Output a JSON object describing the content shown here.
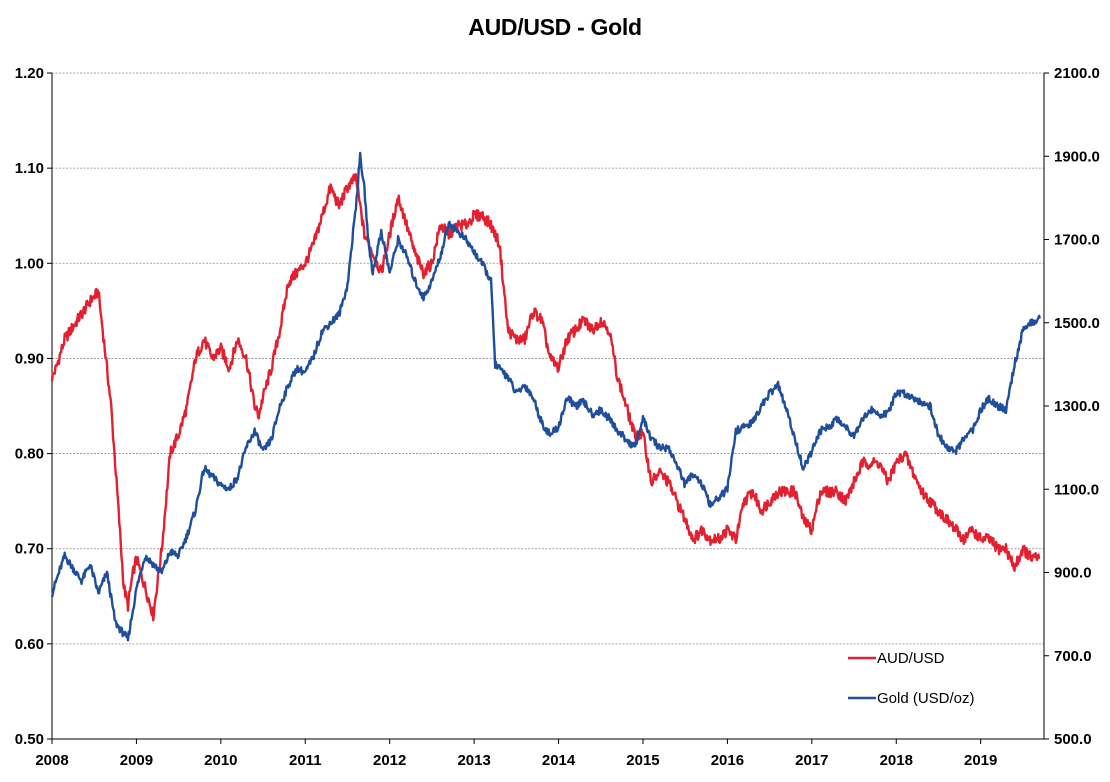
{
  "chart_data": {
    "type": "line",
    "title": "AUD/USD - Gold",
    "x_tick_labels": [
      "2008",
      "2009",
      "2010",
      "2011",
      "2012",
      "2013",
      "2014",
      "2015",
      "2016",
      "2017",
      "2018",
      "2019"
    ],
    "y_left": {
      "ylim": [
        0.5,
        1.2
      ],
      "tick_labels": [
        "0.50",
        "0.60",
        "0.70",
        "0.80",
        "0.90",
        "1.00",
        "1.10",
        "1.20"
      ]
    },
    "y_right": {
      "ylim": [
        500,
        2100
      ],
      "tick_labels": [
        "500.0",
        "700.0",
        "900.0",
        "1100.0",
        "1300.0",
        "1500.0",
        "1700.0",
        "1900.0",
        "2100.0"
      ]
    },
    "grid": "horizontal, dashed",
    "legend_position": "bottom-right",
    "series": [
      {
        "name": "AUD/USD",
        "axis": "left",
        "color": "#e3202f",
        "x": [
          2008.0,
          2008.05,
          2008.15,
          2008.3,
          2008.45,
          2008.55,
          2008.6,
          2008.7,
          2008.78,
          2008.85,
          2008.9,
          2008.95,
          2009.0,
          2009.1,
          2009.2,
          2009.3,
          2009.4,
          2009.5,
          2009.6,
          2009.7,
          2009.8,
          2009.9,
          2010.0,
          2010.1,
          2010.2,
          2010.3,
          2010.4,
          2010.45,
          2010.5,
          2010.6,
          2010.7,
          2010.8,
          2010.9,
          2011.0,
          2011.1,
          2011.2,
          2011.3,
          2011.4,
          2011.5,
          2011.6,
          2011.7,
          2011.8,
          2011.9,
          2012.0,
          2012.1,
          2012.2,
          2012.3,
          2012.4,
          2012.5,
          2012.6,
          2012.7,
          2012.8,
          2012.9,
          2013.0,
          2013.1,
          2013.2,
          2013.3,
          2013.4,
          2013.5,
          2013.6,
          2013.7,
          2013.8,
          2013.9,
          2014.0,
          2014.1,
          2014.2,
          2014.3,
          2014.4,
          2014.5,
          2014.6,
          2014.7,
          2014.8,
          2014.9,
          2015.0,
          2015.1,
          2015.2,
          2015.3,
          2015.4,
          2015.5,
          2015.6,
          2015.7,
          2015.8,
          2015.9,
          2016.0,
          2016.1,
          2016.2,
          2016.3,
          2016.4,
          2016.5,
          2016.6,
          2016.7,
          2016.8,
          2016.9,
          2017.0,
          2017.1,
          2017.2,
          2017.3,
          2017.4,
          2017.5,
          2017.6,
          2017.7,
          2017.8,
          2017.9,
          2018.0,
          2018.1,
          2018.2,
          2018.3,
          2018.4,
          2018.5,
          2018.6,
          2018.7,
          2018.8,
          2018.9,
          2019.0,
          2019.1,
          2019.2,
          2019.3,
          2019.4,
          2019.5,
          2019.6,
          2019.7
        ],
        "y": [
          0.88,
          0.89,
          0.92,
          0.94,
          0.96,
          0.97,
          0.93,
          0.85,
          0.75,
          0.66,
          0.64,
          0.67,
          0.69,
          0.66,
          0.63,
          0.7,
          0.8,
          0.82,
          0.85,
          0.9,
          0.92,
          0.9,
          0.91,
          0.89,
          0.92,
          0.9,
          0.85,
          0.84,
          0.86,
          0.89,
          0.93,
          0.98,
          0.99,
          1.0,
          1.02,
          1.05,
          1.08,
          1.06,
          1.08,
          1.09,
          1.03,
          1.01,
          0.99,
          1.03,
          1.07,
          1.04,
          1.01,
          0.99,
          1.0,
          1.04,
          1.03,
          1.04,
          1.04,
          1.05,
          1.05,
          1.04,
          1.02,
          0.93,
          0.92,
          0.92,
          0.95,
          0.94,
          0.9,
          0.89,
          0.92,
          0.93,
          0.94,
          0.93,
          0.94,
          0.93,
          0.88,
          0.85,
          0.82,
          0.82,
          0.77,
          0.78,
          0.77,
          0.75,
          0.73,
          0.71,
          0.72,
          0.71,
          0.71,
          0.72,
          0.71,
          0.75,
          0.76,
          0.74,
          0.75,
          0.76,
          0.76,
          0.76,
          0.73,
          0.72,
          0.76,
          0.76,
          0.76,
          0.75,
          0.77,
          0.79,
          0.79,
          0.79,
          0.77,
          0.79,
          0.8,
          0.78,
          0.76,
          0.75,
          0.74,
          0.73,
          0.72,
          0.71,
          0.72,
          0.71,
          0.71,
          0.7,
          0.7,
          0.68,
          0.7,
          0.69,
          0.69
        ]
      },
      {
        "name": "Gold (USD/oz)",
        "axis": "right",
        "color": "#1f4e9b",
        "x": [
          2008.0,
          2008.05,
          2008.15,
          2008.25,
          2008.35,
          2008.45,
          2008.55,
          2008.65,
          2008.75,
          2008.82,
          2008.9,
          2009.0,
          2009.1,
          2009.2,
          2009.3,
          2009.4,
          2009.5,
          2009.6,
          2009.7,
          2009.8,
          2009.9,
          2010.0,
          2010.1,
          2010.2,
          2010.3,
          2010.4,
          2010.5,
          2010.6,
          2010.7,
          2010.8,
          2010.9,
          2011.0,
          2011.1,
          2011.2,
          2011.3,
          2011.4,
          2011.5,
          2011.6,
          2011.65,
          2011.7,
          2011.75,
          2011.8,
          2011.9,
          2012.0,
          2012.1,
          2012.2,
          2012.3,
          2012.4,
          2012.5,
          2012.6,
          2012.7,
          2012.8,
          2012.9,
          2013.0,
          2013.1,
          2013.2,
          2013.25,
          2013.3,
          2013.4,
          2013.5,
          2013.6,
          2013.7,
          2013.8,
          2013.9,
          2014.0,
          2014.1,
          2014.2,
          2014.3,
          2014.4,
          2014.5,
          2014.6,
          2014.7,
          2014.8,
          2014.9,
          2015.0,
          2015.1,
          2015.2,
          2015.3,
          2015.4,
          2015.5,
          2015.6,
          2015.7,
          2015.8,
          2015.9,
          2016.0,
          2016.1,
          2016.2,
          2016.3,
          2016.4,
          2016.5,
          2016.6,
          2016.7,
          2016.8,
          2016.9,
          2017.0,
          2017.1,
          2017.2,
          2017.3,
          2017.4,
          2017.5,
          2017.6,
          2017.7,
          2017.8,
          2017.9,
          2018.0,
          2018.1,
          2018.2,
          2018.3,
          2018.4,
          2018.5,
          2018.6,
          2018.7,
          2018.8,
          2018.9,
          2019.0,
          2019.1,
          2019.2,
          2019.3,
          2019.4,
          2019.5,
          2019.6,
          2019.7
        ],
        "y": [
          850,
          880,
          940,
          910,
          880,
          920,
          850,
          900,
          780,
          760,
          740,
          860,
          940,
          920,
          900,
          950,
          940,
          990,
          1050,
          1150,
          1130,
          1110,
          1100,
          1130,
          1200,
          1240,
          1190,
          1220,
          1300,
          1350,
          1390,
          1380,
          1420,
          1480,
          1500,
          1520,
          1590,
          1780,
          1900,
          1820,
          1690,
          1620,
          1720,
          1620,
          1700,
          1660,
          1600,
          1560,
          1600,
          1660,
          1740,
          1720,
          1700,
          1670,
          1640,
          1600,
          1400,
          1390,
          1370,
          1330,
          1350,
          1320,
          1260,
          1230,
          1250,
          1320,
          1300,
          1310,
          1280,
          1290,
          1270,
          1240,
          1220,
          1200,
          1270,
          1220,
          1200,
          1200,
          1160,
          1110,
          1140,
          1110,
          1060,
          1080,
          1100,
          1240,
          1250,
          1260,
          1300,
          1330,
          1350,
          1290,
          1220,
          1150,
          1190,
          1240,
          1250,
          1270,
          1250,
          1230,
          1270,
          1290,
          1280,
          1280,
          1330,
          1330,
          1320,
          1310,
          1300,
          1230,
          1200,
          1190,
          1220,
          1240,
          1290,
          1320,
          1300,
          1290,
          1400,
          1480,
          1500,
          1510
        ]
      }
    ]
  }
}
